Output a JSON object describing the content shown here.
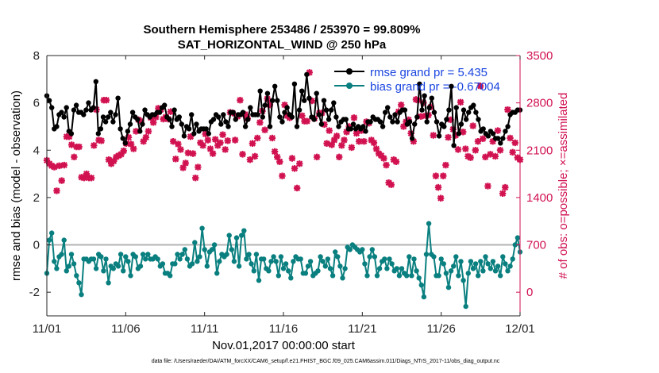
{
  "chart_data": {
    "type": "line",
    "title_line1": "Southern Hemisphere 253486 / 253970 = 99.809%",
    "title_line2": "SAT_HORIZONTAL_WIND @ 250 hPa",
    "xlabel": "Nov.01,2017 00:00:00 start",
    "ylabel_left": "rmse and bias (model - observation)",
    "ylabel_right": "# of obs: o=possible; ×=assimilated",
    "footnote": "data file: /Users/raeder/DAI/ATM_forcXX/CAM6_setup/f.e21.FHIST_BGC.f09_025.CAM6assim.011/Diags_NTrS_2017-11/obs_diag_output.nc",
    "xlim": [
      0,
      30
    ],
    "x_ticks": [
      0,
      5,
      10,
      15,
      20,
      25,
      30
    ],
    "x_tick_labels": [
      "11/01",
      "11/06",
      "11/11",
      "11/16",
      "11/21",
      "11/26",
      "12/01"
    ],
    "ylim_left": [
      -3,
      8
    ],
    "y_ticks_left": [
      -2,
      0,
      2,
      4,
      6,
      8
    ],
    "y_tick_labels_left": [
      "-2",
      "0",
      "2",
      "4",
      "6",
      "8"
    ],
    "ylim_right": [
      -350,
      3500
    ],
    "y_ticks_right": [
      0,
      700,
      1400,
      2100,
      2800,
      3500
    ],
    "y_tick_labels_right": [
      "0",
      "700",
      "1400",
      "2100",
      "2800",
      "3500"
    ],
    "grid": false,
    "legend_position": "top-right",
    "colors": {
      "rmse": "#000000",
      "bias": "#0a7f7f",
      "obs": "#d11150",
      "right_axis": "#d11150",
      "zero_line": "#b3b3b3",
      "legend_text": "#1a45e0"
    },
    "series": [
      {
        "name": "rmse grand pr = 5.435",
        "axis": "left",
        "values": [
          6.3,
          6.1,
          5.8,
          4.9,
          5.0,
          5.5,
          5.6,
          5.4,
          5.8,
          4.8,
          4.7,
          5.7,
          5.9,
          5.6,
          5.6,
          5.5,
          5.7,
          6.0,
          5.7,
          5.8,
          6.9,
          4.7,
          4.9,
          5.4,
          5.2,
          5.4,
          5.6,
          5.2,
          5.5,
          6.2,
          4.9,
          4.5,
          4.3,
          4.8,
          5.1,
          5.6,
          5.4,
          5.3,
          4.8,
          5.1,
          5.7,
          5.5,
          5.4,
          5.5,
          5.5,
          5.6,
          5.6,
          5.8,
          5.9,
          5.4,
          5.3,
          5.0,
          5.7,
          5.3,
          5.4,
          5.1,
          4.6,
          5.0,
          4.9,
          5.5,
          4.7,
          5.1,
          4.8,
          4.9,
          4.9,
          4.9,
          4.7,
          5.2,
          5.3,
          5.5,
          5.4,
          5.1,
          5.5,
          5.2,
          5.0,
          5.6,
          5.6,
          5.3,
          5.5,
          5.5,
          5.6,
          5.0,
          5.3,
          5.8,
          5.5,
          5.5,
          5.5,
          6.5,
          5.4,
          5.9,
          6.4,
          5.0,
          6.1,
          6.7,
          6.1,
          5.4,
          5.2,
          5.6,
          5.8,
          5.5,
          5.4,
          6.8,
          5.0,
          5.7,
          6.5,
          6.1,
          7.2,
          6.2,
          5.4,
          5.3,
          6.4,
          5.5,
          5.1,
          6.1,
          5.7,
          5.3,
          5.7,
          6.0,
          5.4,
          5.0,
          5.2,
          5.3,
          5.3,
          4.9,
          4.9,
          5.1,
          4.9,
          5.0,
          4.9,
          5.0,
          4.8,
          5.2,
          5.2,
          5.4,
          5.3,
          5.3,
          5.2,
          5.0,
          5.6,
          5.8,
          5.4,
          5.2,
          5.5,
          5.2,
          5.6,
          5.7,
          5.7,
          5.1,
          5.2,
          4.5,
          5.1,
          5.4,
          6.8,
          5.7,
          6.3,
          5.2,
          5.8,
          6.2,
          5.6,
          5.2,
          4.6,
          5.1,
          5.0,
          5.3,
          5.7,
          6.7,
          4.2,
          5.8,
          4.7,
          5.1,
          5.7,
          5.3,
          5.6,
          5.8,
          5.9,
          5.6,
          5.3,
          4.8,
          4.9,
          4.7,
          4.6,
          4.8,
          4.7,
          4.5,
          4.5,
          4.3,
          4.5,
          4.8,
          5.0,
          5.5,
          5.6,
          5.6,
          5.7,
          5.7
        ]
      },
      {
        "name": "bias grand pr = -0.67004",
        "axis": "left",
        "values": [
          -1.2,
          0.2,
          0.5,
          -0.7,
          -1.0,
          -0.5,
          -0.4,
          0.2,
          -1.1,
          -0.9,
          -0.4,
          -0.8,
          -1.3,
          -1.6,
          -2.1,
          -0.6,
          -0.6,
          -0.7,
          -0.6,
          -0.6,
          -1.0,
          -0.4,
          -0.5,
          -1.1,
          -0.6,
          -1.6,
          -0.9,
          -1.0,
          -0.8,
          -0.9,
          -0.4,
          -1.1,
          -0.5,
          -0.7,
          -1.3,
          -0.4,
          -0.5,
          -1.0,
          -0.9,
          -0.4,
          -0.6,
          -0.4,
          -0.6,
          -0.6,
          -0.5,
          -0.6,
          -0.9,
          -0.8,
          -1.2,
          -1.2,
          -1.3,
          -0.8,
          -0.8,
          -0.4,
          -0.6,
          -0.4,
          -0.2,
          -0.6,
          -0.9,
          -0.8,
          0.1,
          -0.7,
          -0.5,
          0.7,
          -0.2,
          -0.9,
          -0.3,
          -0.2,
          0.0,
          -1.2,
          -0.7,
          -0.4,
          -0.5,
          -0.4,
          0.4,
          -0.2,
          -0.7,
          0.3,
          -0.9,
          0.4,
          0.6,
          -0.6,
          -0.4,
          -0.8,
          -1.1,
          -0.4,
          -1.5,
          -0.6,
          -0.6,
          -1.0,
          -1.1,
          -0.7,
          -0.5,
          -0.7,
          -1.3,
          -0.5,
          -1.0,
          -0.8,
          -1.1,
          -1.4,
          -0.7,
          -0.5,
          -0.6,
          -0.6,
          -1.2,
          -1.2,
          -0.9,
          -0.7,
          -1.3,
          -1.2,
          -1.1,
          -0.5,
          -0.7,
          -0.9,
          -0.6,
          -1.0,
          -1.3,
          -0.3,
          -0.5,
          -0.9,
          -1.4,
          -1.0,
          -0.1,
          -0.2,
          0.0,
          -0.1,
          -0.2,
          -0.3,
          -0.2,
          -0.8,
          -1.3,
          -0.5,
          -0.2,
          -0.5,
          -1.3,
          -1.0,
          -0.7,
          -0.6,
          -1.0,
          -0.6,
          -0.8,
          -1.1,
          -1.0,
          -1.3,
          -1.0,
          -1.2,
          -1.3,
          -0.5,
          -1.3,
          -0.6,
          -1.1,
          -1.4,
          -1.7,
          -2.2,
          -0.4,
          0.9,
          -0.4,
          -0.5,
          -1.3,
          -1.3,
          -0.6,
          -0.8,
          -1.2,
          -1.8,
          -1.1,
          -0.9,
          -0.5,
          -1.3,
          -0.7,
          -1.5,
          -2.6,
          -1.2,
          -0.7,
          -1.0,
          -0.8,
          -1.3,
          -0.7,
          -1.1,
          -0.5,
          -0.8,
          -1.0,
          -0.7,
          -1.1,
          -0.9,
          -1.3,
          -0.5,
          -0.8,
          -1.1,
          -0.9,
          -0.6,
          0.0,
          0.3,
          -0.3
        ]
      },
      {
        "name": "# of obs",
        "axis": "right",
        "values": [
          1950,
          1900,
          1870,
          1850,
          1500,
          1870,
          1650,
          1880,
          2300,
          2300,
          2180,
          2000,
          2150,
          2150,
          1700,
          1690,
          1750,
          1690,
          1690,
          2170,
          2700,
          2250,
          2240,
          2840,
          2840,
          1960,
          1900,
          1940,
          2000,
          2020,
          2040,
          2090,
          2200,
          2290,
          2190,
          2120,
          2380,
          2550,
          2530,
          2230,
          2290,
          2380,
          2580,
          2510,
          2590,
          2720,
          2700,
          2560,
          2590,
          2560,
          2670,
          2230,
          1970,
          2190,
          2110,
          1840,
          1910,
          2060,
          2300,
          2050,
          1690,
          1850,
          2210,
          2170,
          2340,
          2250,
          2120,
          2050,
          2260,
          2170,
          2210,
          2330,
          2110,
          2240,
          2660,
          2650,
          2250,
          2600,
          2840,
          2040,
          2630,
          2570,
          1960,
          2200,
          2010,
          2280,
          2510,
          2680,
          2400,
          2860,
          2770,
          2280,
          2080,
          2000,
          1930,
          1720,
          2770,
          2610,
          2580,
          1980,
          1830,
          1540,
          1900,
          2610,
          2530,
          2530,
          3250,
          2830,
          2570,
          2000,
          2650,
          2650,
          2480,
          2200,
          2390,
          2180,
          2250,
          2310,
          2000,
          2170,
          2250,
          2370,
          2450,
          2140,
          2580,
          2350,
          2230,
          2390,
          2230,
          2520,
          2500,
          2250,
          2210,
          2120,
          2050,
          2020,
          1980,
          1880,
          1620,
          1590,
          1960,
          1930,
          2670,
          2770,
          2450,
          2520,
          2550,
          2350,
          2230,
          2850,
          2840,
          2600,
          2800,
          2610,
          2620,
          2740,
          2320,
          1720,
          1550,
          1390,
          1720,
          1880,
          2290,
          2550,
          2410,
          2320,
          2110,
          2810,
          2370,
          2120,
          2010,
          1990,
          2460,
          2100,
          2230,
          3050,
          2270,
          2000,
          1570,
          2040,
          2230,
          2010,
          2390,
          2100,
          1460,
          1550,
          2700,
          2280,
          2070,
          2210,
          1990,
          1960
        ]
      }
    ]
  }
}
